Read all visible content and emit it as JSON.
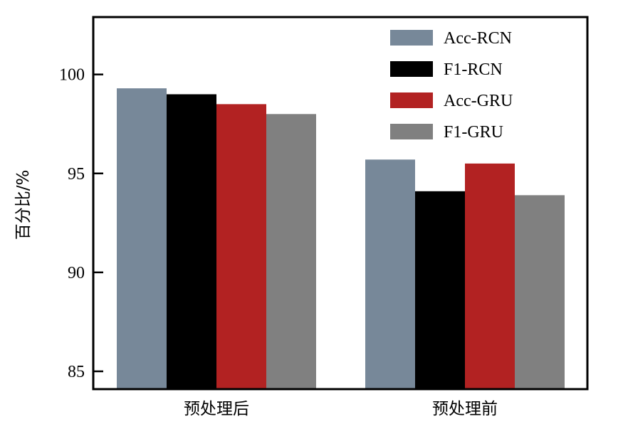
{
  "chart_data": {
    "type": "bar",
    "categories": [
      "预处理后",
      "预处理前"
    ],
    "series": [
      {
        "name": "Acc-RCN",
        "color": "#778899",
        "values": [
          99.3,
          95.7
        ]
      },
      {
        "name": "F1-RCN",
        "color": "#000000",
        "values": [
          99.0,
          94.1
        ]
      },
      {
        "name": "Acc-GRU",
        "color": "#b22222",
        "values": [
          98.5,
          95.5
        ]
      },
      {
        "name": "F1-GRU",
        "color": "#808080",
        "values": [
          98.0,
          93.9
        ]
      }
    ],
    "title": "",
    "xlabel": "",
    "ylabel": "百分比/%",
    "ylim": [
      84.1,
      102.9
    ],
    "yticks": [
      85,
      90,
      95,
      100
    ],
    "grid": false,
    "legend_position": "top-right"
  }
}
